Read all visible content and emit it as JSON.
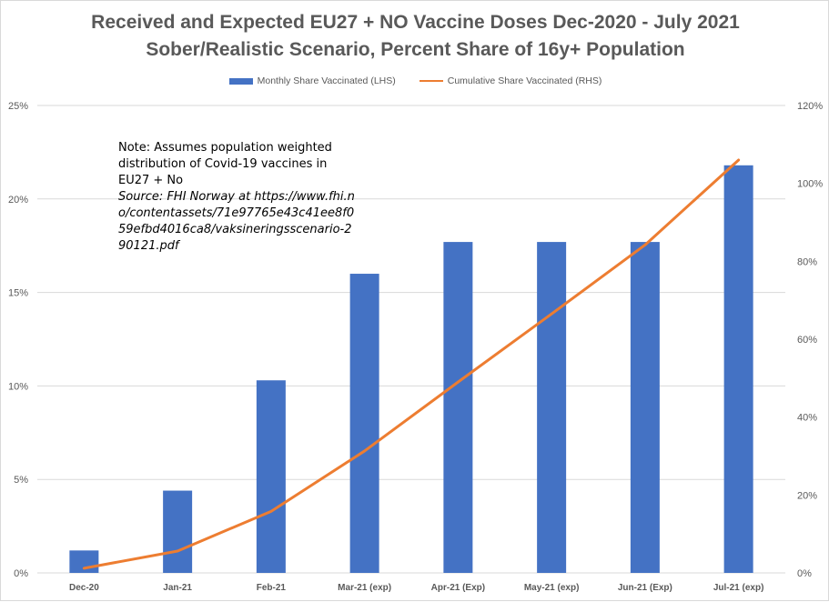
{
  "title_line1": "Received and Expected EU27 + NO Vaccine Doses Dec-2020 - July 2021",
  "title_line2": "Sober/Realistic Scenario, Percent Share of 16y+ Population",
  "note": {
    "text": "Note: Assumes population weighted distribution of Covid-19 vaccines in EU27 + No",
    "source": "Source: FHI Norway at https://www.fhi.no/contentassets/71e97765e43c41ee8f059efbd4016ca8/vaksineringsscenario-290121.pdf"
  },
  "colors": {
    "bar": "#4472c4",
    "line": "#ed7d31",
    "grid": "#d9d9d9",
    "text": "#595959"
  },
  "chart_data": {
    "type": "bar",
    "title": "Received and Expected EU27 + NO Vaccine Doses Dec-2020 - July 2021 Sober/Realistic Scenario, Percent Share of 16y+ Population",
    "categories": [
      "Dec-20",
      "Jan-21",
      "Feb-21",
      "Mar-21 (exp)",
      "Apr-21 (Exp)",
      "May-21 (exp)",
      "Jun-21 (Exp)",
      "Jul-21 (exp)"
    ],
    "series": [
      {
        "name": "Monthly Share Vaccinated (LHS)",
        "type": "bar",
        "axis": "left",
        "values": [
          1.2,
          4.4,
          10.3,
          16.0,
          17.7,
          17.7,
          17.7,
          21.8
        ]
      },
      {
        "name": "Cumulative Share Vaccinated (RHS)",
        "type": "line",
        "axis": "right",
        "values": [
          1.2,
          5.6,
          15.8,
          31.3,
          49.0,
          66.5,
          84.2,
          106.0
        ]
      }
    ],
    "left_axis": {
      "ylim": [
        0,
        25
      ],
      "ticks": [
        0,
        5,
        10,
        15,
        20,
        25
      ],
      "tick_labels": [
        "0%",
        "5%",
        "10%",
        "15%",
        "20%",
        "25%"
      ]
    },
    "right_axis": {
      "ylim": [
        0,
        120
      ],
      "ticks": [
        0,
        20,
        40,
        60,
        80,
        100,
        120
      ],
      "tick_labels": [
        "0%",
        "20%",
        "40%",
        "60%",
        "80%",
        "100%",
        "120%"
      ]
    },
    "legend_position": "top-center",
    "grid": true
  }
}
